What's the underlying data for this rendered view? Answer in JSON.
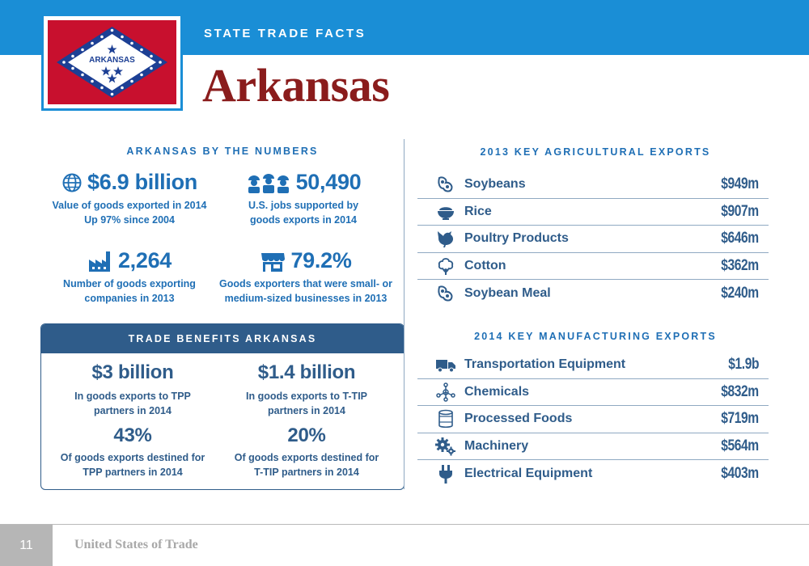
{
  "header": {
    "eyebrow": "STATE TRADE FACTS",
    "state_name": "Arkansas",
    "flag_text": "ARKANSAS"
  },
  "by_the_numbers": {
    "heading": "ARKANSAS BY THE NUMBERS",
    "stats": [
      {
        "value": "$6.9 billion",
        "icon": "globe-icon",
        "lines": [
          "Value of goods exported in 2014",
          "Up 97% since 2004"
        ]
      },
      {
        "value": "50,490",
        "icon": "workers-icon",
        "lines": [
          "U.S. jobs supported by",
          "goods exports in 2014"
        ]
      },
      {
        "value": "2,264",
        "icon": "factory-icon",
        "lines": [
          "Number of goods exporting",
          "companies in 2013"
        ]
      },
      {
        "value": "79.2%",
        "icon": "storefront-icon",
        "lines": [
          "Goods exporters that were small- or",
          "medium-sized businesses in 2013"
        ]
      }
    ]
  },
  "trade_benefits": {
    "heading": "TRADE BENEFITS ARKANSAS",
    "items": [
      {
        "value": "$3 billion",
        "lines": [
          "In goods exports to TPP",
          "partners in 2014"
        ]
      },
      {
        "value": "$1.4 billion",
        "lines": [
          "In goods exports to T-TIP",
          "partners in 2014"
        ]
      },
      {
        "value": "43%",
        "lines": [
          "Of goods exports destined for",
          "TPP partners in 2014"
        ]
      },
      {
        "value": "20%",
        "lines": [
          "Of goods exports destined for",
          "T-TIP partners in 2014"
        ]
      }
    ]
  },
  "agricultural_exports": {
    "heading": "2013 KEY AGRICULTURAL EXPORTS",
    "items": [
      {
        "label": "Soybeans",
        "value": "$949m",
        "icon": "soybean-icon"
      },
      {
        "label": "Rice",
        "value": "$907m",
        "icon": "rice-bowl-icon"
      },
      {
        "label": "Poultry Products",
        "value": "$646m",
        "icon": "chicken-icon"
      },
      {
        "label": "Cotton",
        "value": "$362m",
        "icon": "cotton-icon"
      },
      {
        "label": "Soybean Meal",
        "value": "$240m",
        "icon": "soybean-icon"
      }
    ]
  },
  "manufacturing_exports": {
    "heading": "2014 KEY MANUFACTURING EXPORTS",
    "items": [
      {
        "label": "Transportation Equipment",
        "value": "$1.9b",
        "icon": "truck-icon"
      },
      {
        "label": "Chemicals",
        "value": "$832m",
        "icon": "molecule-icon"
      },
      {
        "label": "Processed Foods",
        "value": "$719m",
        "icon": "can-icon"
      },
      {
        "label": "Machinery",
        "value": "$564m",
        "icon": "gears-icon"
      },
      {
        "label": "Electrical Equipment",
        "value": "$403m",
        "icon": "plug-icon"
      }
    ]
  },
  "footer": {
    "page_number": "11",
    "title": "United States of Trade"
  },
  "colors": {
    "brand_blue": "#1a8ed6",
    "heading_blue": "#1f6fb5",
    "navy": "#2f5c8a",
    "state_red": "#8a1c1c",
    "flag_red": "#c8102e",
    "flag_blue": "#1c3f94"
  }
}
